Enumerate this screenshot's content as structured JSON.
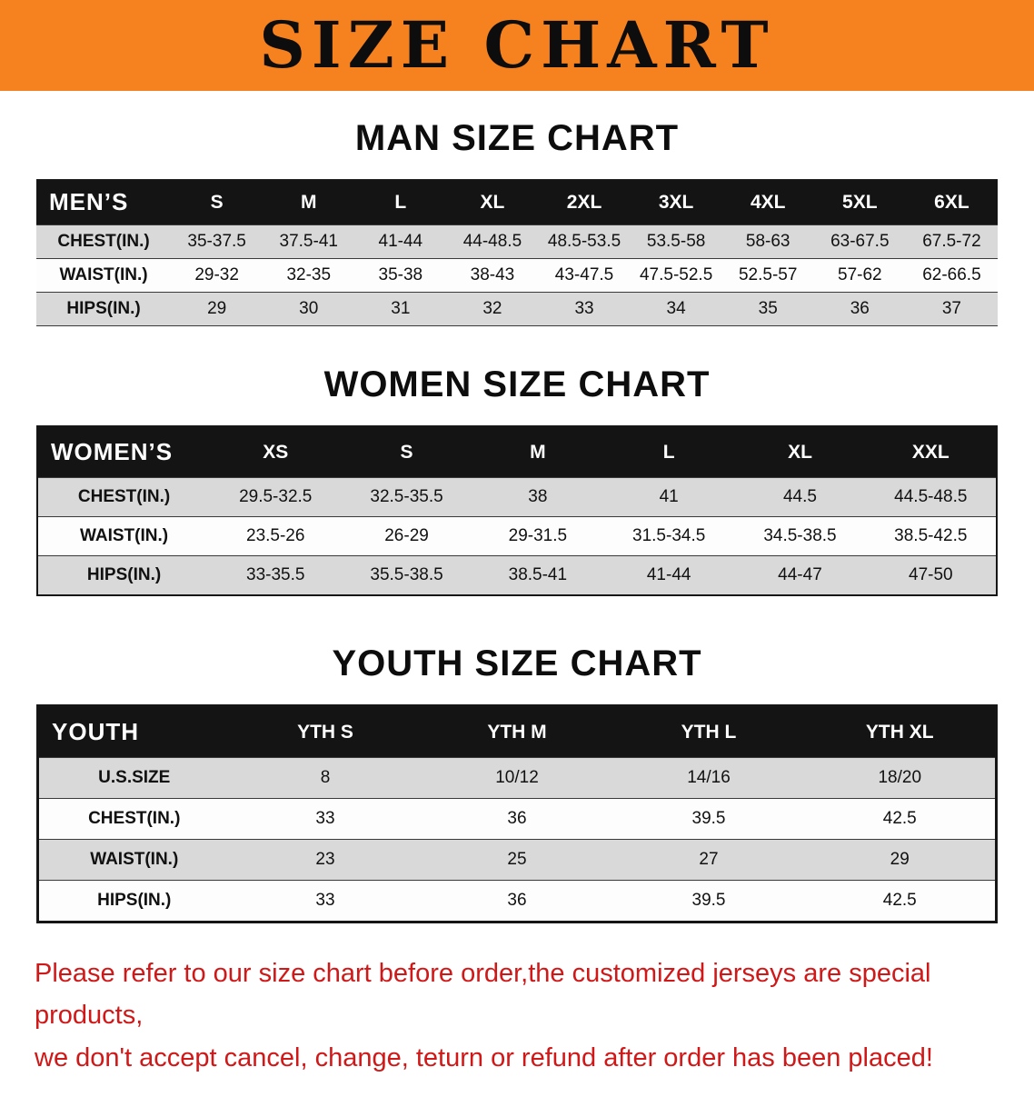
{
  "banner": {
    "title": "SIZE CHART",
    "bg_color": "#F6821F",
    "text_color": "#0D0D0D"
  },
  "sections": [
    {
      "heading": "MAN SIZE CHART",
      "table": {
        "title": "MEN’S",
        "header": [
          "MEN’S",
          "S",
          "M",
          "L",
          "XL",
          "2XL",
          "3XL",
          "4XL",
          "5XL",
          "6XL"
        ],
        "rows": [
          [
            "CHEST(IN.)",
            "35-37.5",
            "37.5-41",
            "41-44",
            "44-48.5",
            "48.5-53.5",
            "53.5-58",
            "58-63",
            "63-67.5",
            "67.5-72"
          ],
          [
            "WAIST(IN.)",
            "29-32",
            "32-35",
            "35-38",
            "38-43",
            "43-47.5",
            "47.5-52.5",
            "52.5-57",
            "57-62",
            "62-66.5"
          ],
          [
            "HIPS(IN.)",
            "29",
            "30",
            "31",
            "32",
            "33",
            "34",
            "35",
            "36",
            "37"
          ]
        ]
      }
    },
    {
      "heading": "WOMEN SIZE CHART",
      "table": {
        "title": "WOMEN’S",
        "header": [
          "WOMEN’S",
          "XS",
          "S",
          "M",
          "L",
          "XL",
          "XXL"
        ],
        "rows": [
          [
            "CHEST(IN.)",
            "29.5-32.5",
            "32.5-35.5",
            "38",
            "41",
            "44.5",
            "44.5-48.5"
          ],
          [
            "WAIST(IN.)",
            "23.5-26",
            "26-29",
            "29-31.5",
            "31.5-34.5",
            "34.5-38.5",
            "38.5-42.5"
          ],
          [
            "HIPS(IN.)",
            "33-35.5",
            "35.5-38.5",
            "38.5-41",
            "41-44",
            "44-47",
            "47-50"
          ]
        ]
      }
    },
    {
      "heading": "YOUTH SIZE CHART",
      "table": {
        "title": "YOUTH",
        "header": [
          "YOUTH",
          "YTH S",
          "YTH M",
          "YTH L",
          "YTH XL"
        ],
        "rows": [
          [
            "U.S.SIZE",
            "8",
            "10/12",
            "14/16",
            "18/20"
          ],
          [
            "CHEST(IN.)",
            "33",
            "36",
            "39.5",
            "42.5"
          ],
          [
            "WAIST(IN.)",
            "23",
            "25",
            "27",
            "29"
          ],
          [
            "HIPS(IN.)",
            "33",
            "36",
            "39.5",
            "42.5"
          ]
        ]
      }
    }
  ],
  "note": {
    "color": "#D01818",
    "lines": [
      "Please refer to our size chart before order,the customized jerseys are special products,",
      "we don't accept cancel, change, teturn or refund after order has been placed!"
    ]
  }
}
